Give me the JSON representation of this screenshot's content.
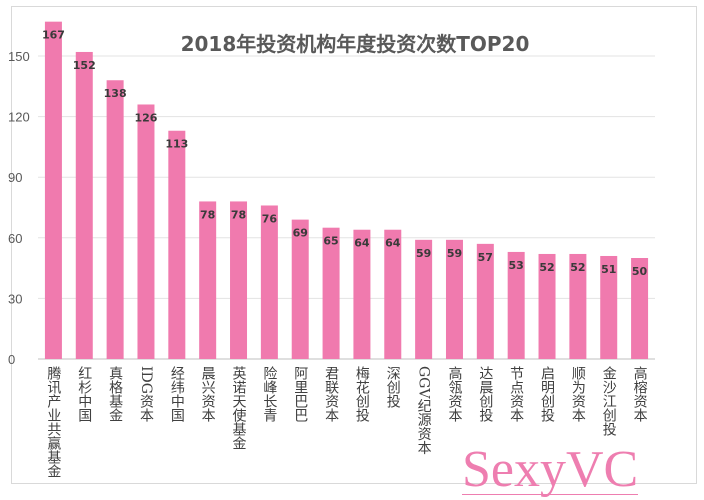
{
  "chart_data": {
    "type": "bar",
    "title": "2018年投资机构年度投资次数TOP20",
    "categories": [
      "腾讯产业共赢基金",
      "红杉中国",
      "真格基金",
      "IDG资本",
      "经纬中国",
      "晨兴资本",
      "英诺天使基金",
      "险峰长青",
      "阿里巴巴",
      "君联资本",
      "梅花创投",
      "深创投",
      "GGV纪源资本",
      "高瓴资本",
      "达晨创投",
      "节点资本",
      "启明创投",
      "顺为资本",
      "金沙江创投",
      "高榕资本"
    ],
    "values": [
      167,
      152,
      138,
      126,
      113,
      78,
      78,
      76,
      69,
      65,
      64,
      64,
      59,
      59,
      57,
      53,
      52,
      52,
      51,
      50
    ],
    "ylim": [
      0,
      170
    ],
    "yticks": [
      0,
      30,
      60,
      90,
      120,
      150
    ],
    "grid": true,
    "bar_color": "#f07aae",
    "xlabel": "",
    "ylabel": ""
  },
  "watermark": "SexyVC"
}
